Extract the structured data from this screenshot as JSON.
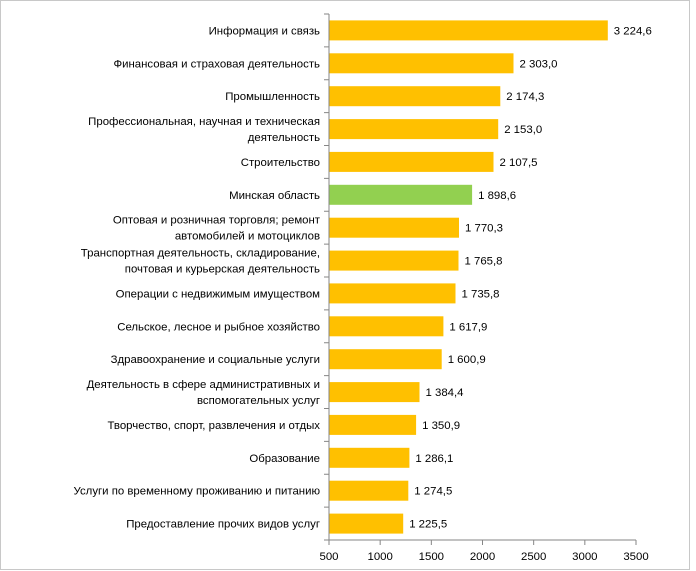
{
  "chart_data": {
    "type": "bar",
    "orientation": "horizontal",
    "categories": [
      [
        "Информация и связь"
      ],
      [
        "Финансовая и страховая деятельность"
      ],
      [
        "Промышленность"
      ],
      [
        "Профессиональная, научная и техническая",
        "деятельность"
      ],
      [
        "Строительство"
      ],
      [
        "Минская область"
      ],
      [
        "Оптовая и розничная торговля; ремонт",
        "автомобилей и мотоциклов"
      ],
      [
        "Транспортная деятельность, складирование,",
        "почтовая и курьерская деятельность"
      ],
      [
        "Операции с недвижимым имуществом"
      ],
      [
        "Сельское, лесное и рыбное хозяйство"
      ],
      [
        "Здравоохранение и социальные услуги"
      ],
      [
        "Деятельность в сфере административных и",
        "вспомогательных услуг"
      ],
      [
        "Творчество, спорт, развлечения и отдых"
      ],
      [
        "Образование"
      ],
      [
        "Услуги по временному проживанию и питанию"
      ],
      [
        "Предоставление прочих видов услуг"
      ]
    ],
    "values": [
      3224.6,
      2303.0,
      2174.3,
      2153.0,
      2107.5,
      1898.6,
      1770.3,
      1765.8,
      1735.8,
      1617.9,
      1600.9,
      1384.4,
      1350.9,
      1286.1,
      1274.5,
      1225.5
    ],
    "value_labels": [
      "3 224,6",
      "2 303,0",
      "2 174,3",
      "2 153,0",
      "2 107,5",
      "1 898,6",
      "1 770,3",
      "1 765,8",
      "1 735,8",
      "1 617,9",
      "1 600,9",
      "1 384,4",
      "1 350,9",
      "1 286,1",
      "1 274,5",
      "1 225,5"
    ],
    "highlight_index": 5,
    "xlim": [
      500,
      3500
    ],
    "xticks": [
      500,
      1000,
      1500,
      2000,
      2500,
      3000,
      3500
    ],
    "xtick_labels": [
      "500",
      "1000",
      "1500",
      "2000",
      "2500",
      "3000",
      "3500"
    ],
    "colors": {
      "bar": "#FFC000",
      "highlight": "#92D050",
      "axis": "#868686"
    },
    "grid": false,
    "legend": "none",
    "title": "",
    "xlabel": "",
    "ylabel": ""
  }
}
